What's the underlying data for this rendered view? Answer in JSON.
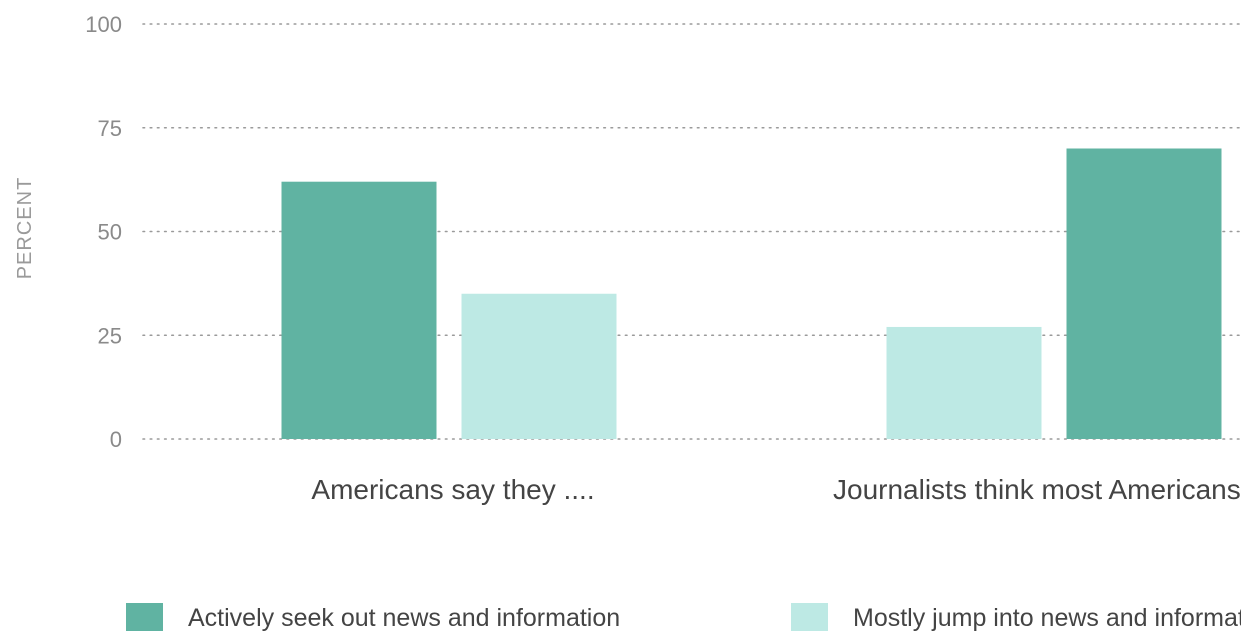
{
  "chart_data": {
    "type": "bar",
    "ylabel": "PERCENT",
    "xlabel": "",
    "ylim": [
      0,
      100
    ],
    "yticks": [
      0,
      25,
      50,
      75,
      100
    ],
    "grid": true,
    "legend_position": "bottom",
    "categories": [
      "Americans say they ....",
      "Journalists think most Americans"
    ],
    "series": [
      {
        "name": "Actively seek out news and information",
        "color": "#60b3a2",
        "values": [
          62,
          70
        ]
      },
      {
        "name": "Mostly jump into news and information",
        "color": "#bde9e4",
        "values": [
          35,
          27
        ]
      }
    ]
  }
}
